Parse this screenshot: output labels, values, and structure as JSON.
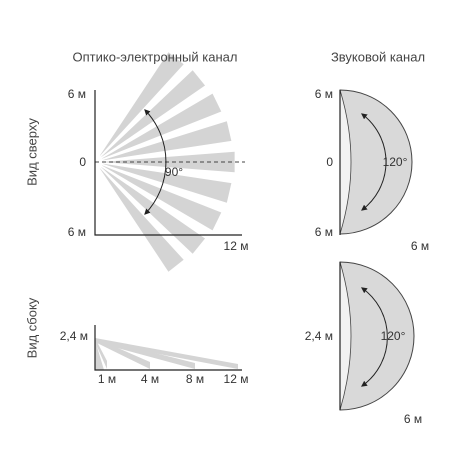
{
  "headers": [
    "Оптико-электронный канал",
    "Звуковой канал"
  ],
  "row_labels": [
    "Вид сверху",
    "Вид сбоку"
  ],
  "top_optical": {
    "y_top": "6 м",
    "y_mid": "0",
    "y_bottom": "6 м",
    "x_end": "12 м",
    "angle": "90°"
  },
  "top_sound": {
    "y_top": "6 м",
    "y_mid": "0",
    "y_bottom": "6 м",
    "x_end": "6 м",
    "angle": "120°"
  },
  "side_optical": {
    "height": "2,4 м",
    "x_labels": [
      "1 м",
      "4 м",
      "8 м",
      "12 м"
    ]
  },
  "side_sound": {
    "height": "2,4 м",
    "x_end": "6 м",
    "angle": "120°"
  }
}
